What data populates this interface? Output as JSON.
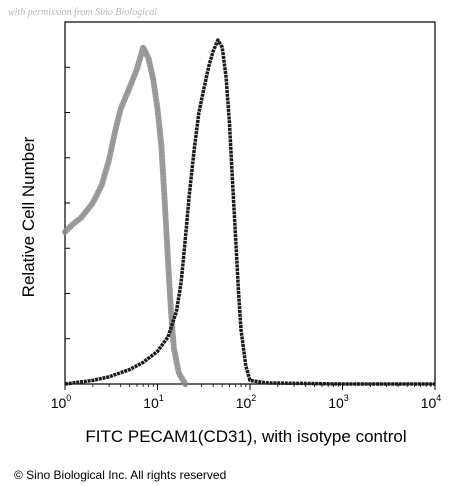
{
  "watermark": "with permission from Sino Biological",
  "copyright": "© Sino Biological Inc. All rights reserved",
  "chart_data": {
    "type": "area",
    "xlabel": "FITC PECAM1(CD31), with isotype control",
    "ylabel": "Relative Cell Number",
    "xscale": "log",
    "xlim": [
      1,
      10000
    ],
    "x_ticks": [
      {
        "base": "10",
        "exp": "0",
        "value": 1
      },
      {
        "base": "10",
        "exp": "1",
        "value": 10
      },
      {
        "base": "10",
        "exp": "2",
        "value": 100
      },
      {
        "base": "10",
        "exp": "3",
        "value": 1000
      },
      {
        "base": "10",
        "exp": "4",
        "value": 10000
      }
    ],
    "y_tick_count": 8,
    "ylim": [
      0,
      1
    ],
    "grid": false,
    "legend": "none",
    "series": [
      {
        "style": "dotted",
        "color": "#8a8a8a",
        "x": [
          1,
          1.2,
          1.5,
          2,
          2.5,
          3,
          3.5,
          4,
          5,
          6,
          7,
          8,
          9,
          10,
          11,
          12,
          13,
          14,
          15,
          17,
          20
        ],
        "y": [
          0.42,
          0.44,
          0.46,
          0.5,
          0.55,
          0.62,
          0.7,
          0.76,
          0.82,
          0.87,
          0.93,
          0.9,
          0.84,
          0.76,
          0.66,
          0.5,
          0.34,
          0.2,
          0.1,
          0.03,
          0.0
        ]
      },
      {
        "style": "solid",
        "color": "#1a1a1a",
        "x": [
          1,
          2,
          3,
          5,
          7,
          10,
          13,
          16,
          18,
          20,
          22,
          25,
          28,
          32,
          36,
          40,
          45,
          50,
          55,
          60,
          65,
          70,
          75,
          80,
          90,
          100,
          150,
          1000,
          10000
        ],
        "y": [
          0.0,
          0.01,
          0.02,
          0.04,
          0.06,
          0.09,
          0.13,
          0.2,
          0.28,
          0.4,
          0.52,
          0.65,
          0.75,
          0.82,
          0.88,
          0.92,
          0.95,
          0.93,
          0.85,
          0.72,
          0.55,
          0.4,
          0.26,
          0.15,
          0.05,
          0.01,
          0.003,
          0.0,
          0.0
        ]
      }
    ]
  }
}
